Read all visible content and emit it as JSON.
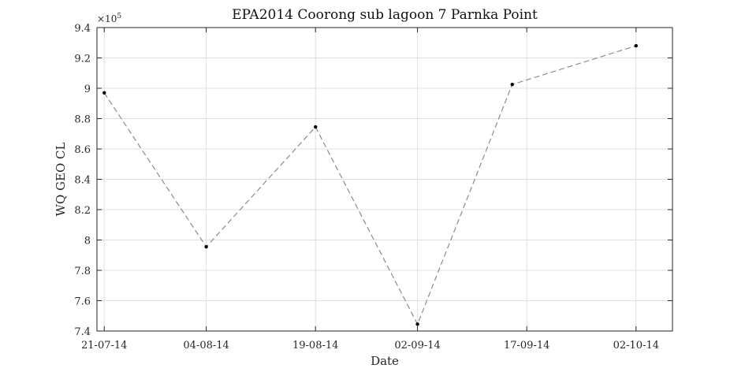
{
  "chart_data": {
    "type": "line",
    "title": "EPA2014 Coorong sub lagoon 7 Parnka Point",
    "xlabel": "Date",
    "ylabel": "WQ GEO CL",
    "y_exponent_label": "×10",
    "y_exponent": "5",
    "x_tick_labels": [
      "21-07-14",
      "04-08-14",
      "19-08-14",
      "02-09-14",
      "17-09-14",
      "02-10-14"
    ],
    "x_ticks": [
      "2014-07-21",
      "2014-08-04",
      "2014-08-19",
      "2014-09-02",
      "2014-09-17",
      "2014-10-02"
    ],
    "xlim": [
      "2014-07-20",
      "2014-10-07"
    ],
    "y_tick_labels": [
      "7.4",
      "7.6",
      "7.8",
      "8",
      "8.2",
      "8.4",
      "8.6",
      "8.8",
      "9",
      "9.2",
      "9.4"
    ],
    "y_ticks": [
      7.4,
      7.6,
      7.8,
      8.0,
      8.2,
      8.4,
      8.6,
      8.8,
      9.0,
      9.2,
      9.4
    ],
    "ylim": [
      7.4,
      9.4
    ],
    "grid": true,
    "series": [
      {
        "x": [
          "2014-07-21",
          "2014-08-04",
          "2014-08-19",
          "2014-09-02",
          "2014-09-15",
          "2014-10-02"
        ],
        "y": [
          8.97,
          7.955,
          8.745,
          7.445,
          9.025,
          9.28
        ],
        "line_style": "dashed",
        "line_color": "#8c8c8c",
        "marker_color": "#000000"
      }
    ]
  }
}
